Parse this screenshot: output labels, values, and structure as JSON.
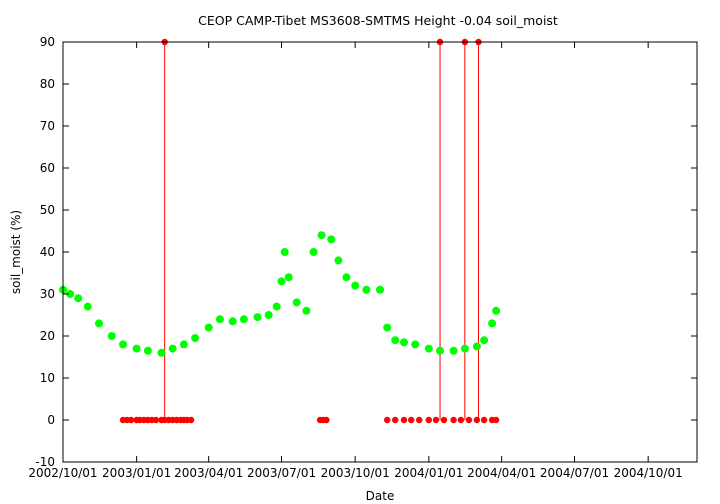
{
  "chart_data": {
    "type": "scatter",
    "title": "CEOP CAMP-Tibet MS3608-SMTMS Height -0.04 soil_moist",
    "xlabel": "Date",
    "ylabel": "soil_moist (%)",
    "xlim": [
      "2002-10-01",
      "2004-12-01"
    ],
    "ylim": [
      -10,
      90
    ],
    "y_ticks": [
      -10,
      0,
      10,
      20,
      30,
      40,
      50,
      60,
      70,
      80,
      90
    ],
    "x_ticks": [
      "2002/10/01",
      "2003/01/01",
      "2003/04/01",
      "2003/07/01",
      "2003/10/01",
      "2004/01/01",
      "2004/04/01",
      "2004/07/01",
      "2004/10/01"
    ],
    "x_tick_dates": [
      "2002-10-01",
      "2003-01-01",
      "2003-04-01",
      "2003-07-01",
      "2003-10-01",
      "2004-01-01",
      "2004-04-01",
      "2004-07-01",
      "2004-10-01"
    ],
    "grid": false,
    "legend": "none",
    "series": [
      {
        "color": "#00ff00",
        "x": [
          "2002-10-01",
          "2002-10-10",
          "2002-10-20",
          "2002-11-01",
          "2002-11-15",
          "2002-12-01",
          "2002-12-15",
          "2003-01-01",
          "2003-01-15",
          "2003-02-01",
          "2003-02-15",
          "2003-03-01",
          "2003-03-15",
          "2003-04-01",
          "2003-04-15",
          "2003-05-01",
          "2003-05-15",
          "2003-06-01",
          "2003-06-15",
          "2003-06-25",
          "2003-07-01",
          "2003-07-05",
          "2003-07-10",
          "2003-07-20",
          "2003-08-01",
          "2003-08-10",
          "2003-08-20",
          "2003-09-01",
          "2003-09-10",
          "2003-09-20",
          "2003-10-01",
          "2003-10-15",
          "2003-11-01",
          "2003-11-10",
          "2003-11-20",
          "2003-12-01",
          "2003-12-15",
          "2004-01-01",
          "2004-01-15",
          "2004-02-01",
          "2004-02-15",
          "2004-03-01",
          "2004-03-10",
          "2004-03-20",
          "2004-03-25"
        ],
        "y": [
          31,
          30,
          29,
          27,
          23,
          20,
          18,
          17,
          16.5,
          16,
          17,
          18,
          19.5,
          22,
          24,
          23.5,
          24,
          24.5,
          25,
          27,
          33,
          40,
          34,
          28,
          26,
          40,
          44,
          43,
          38,
          34,
          32,
          31,
          31,
          22,
          19,
          18.5,
          18,
          17,
          16.5,
          16.5,
          17,
          17.5,
          19,
          23,
          26
        ]
      },
      {
        "color": "#ff0000",
        "x": [
          "2002-12-15",
          "2002-12-20",
          "2002-12-25",
          "2003-01-01",
          "2003-01-05",
          "2003-01-10",
          "2003-01-15",
          "2003-01-20",
          "2003-01-25",
          "2003-02-01",
          "2003-02-05",
          "2003-02-10",
          "2003-02-15",
          "2003-02-20",
          "2003-02-25",
          "2003-03-01",
          "2003-03-05",
          "2003-03-10",
          "2003-08-18",
          "2003-08-22",
          "2003-08-26",
          "2003-11-10",
          "2003-11-20",
          "2003-12-01",
          "2003-12-10",
          "2003-12-20",
          "2004-01-01",
          "2004-01-10",
          "2004-01-20",
          "2004-02-01",
          "2004-02-10",
          "2004-02-20",
          "2004-03-01",
          "2004-03-10",
          "2004-03-20",
          "2004-03-25",
          "2003-02-05",
          "2004-01-15",
          "2004-02-15",
          "2004-03-03"
        ],
        "y": [
          0,
          0,
          0,
          0,
          0,
          0,
          0,
          0,
          0,
          0,
          0,
          0,
          0,
          0,
          0,
          0,
          0,
          0,
          0,
          0,
          0,
          0,
          0,
          0,
          0,
          0,
          0,
          0,
          0,
          0,
          0,
          0,
          0,
          0,
          0,
          0,
          90,
          90,
          90,
          90
        ]
      }
    ],
    "spikes": [
      "2003-02-05",
      "2004-01-15",
      "2004-02-15",
      "2004-03-03"
    ]
  }
}
